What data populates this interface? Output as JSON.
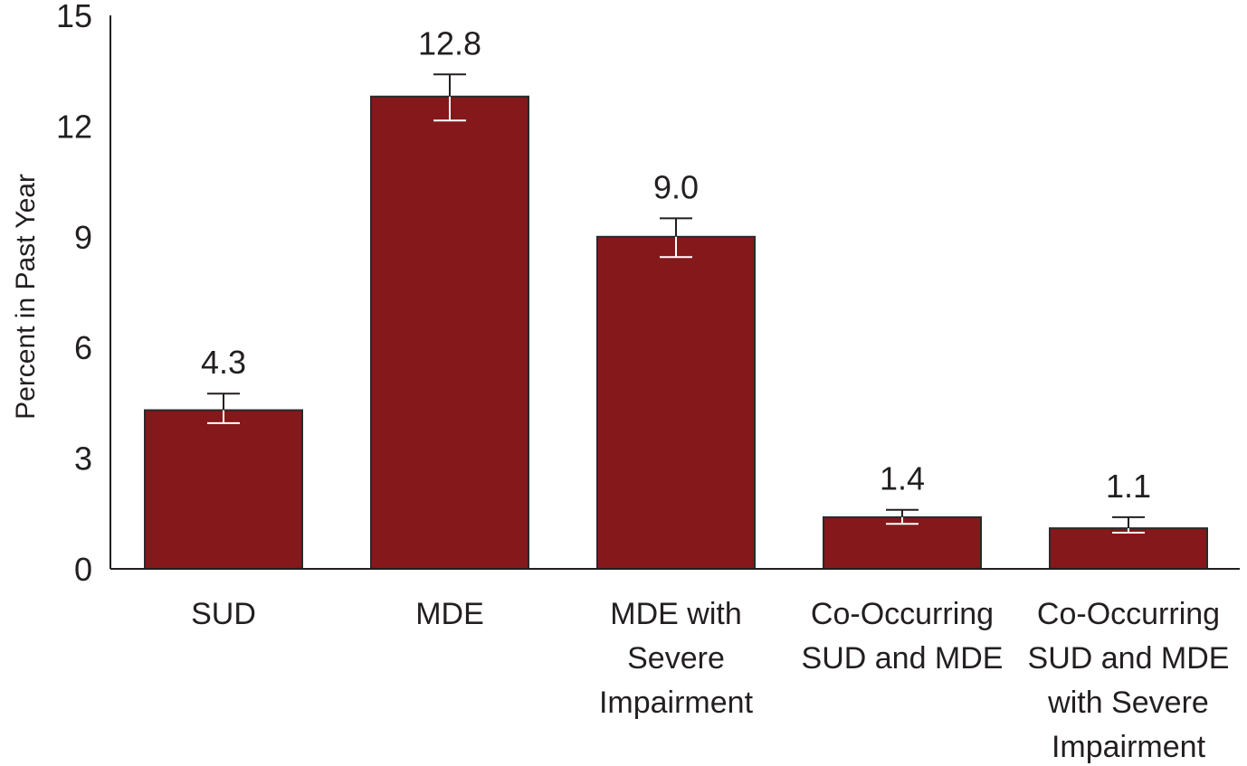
{
  "colors": {
    "bar_fill": "#84181b",
    "bar_stroke": "#2a2a2a",
    "axis": "#231f20",
    "error_bar": "#ffffff",
    "text": "#231f20"
  },
  "chart_data": {
    "type": "bar",
    "title": "",
    "xlabel": "",
    "ylabel": "Percent in Past Year",
    "ylim": [
      0,
      15
    ],
    "yticks": [
      "0",
      "3",
      "6",
      "9",
      "12",
      "15"
    ],
    "grid": false,
    "legend": "none",
    "categories": [
      [
        "SUD"
      ],
      [
        "MDE"
      ],
      [
        "MDE with",
        "Severe",
        "Impairment"
      ],
      [
        "Co-Occurring",
        "SUD and MDE"
      ],
      [
        "Co-Occurring",
        "SUD and MDE",
        "with Severe",
        "Impairment"
      ]
    ],
    "values": [
      4.3,
      12.8,
      9.0,
      1.4,
      1.1
    ],
    "value_labels": [
      "4.3",
      "12.8",
      "9.0",
      "1.4",
      "1.1"
    ],
    "error_low": [
      3.95,
      12.15,
      8.45,
      1.22,
      0.98
    ],
    "error_high": [
      4.75,
      13.4,
      9.5,
      1.6,
      1.4
    ]
  }
}
